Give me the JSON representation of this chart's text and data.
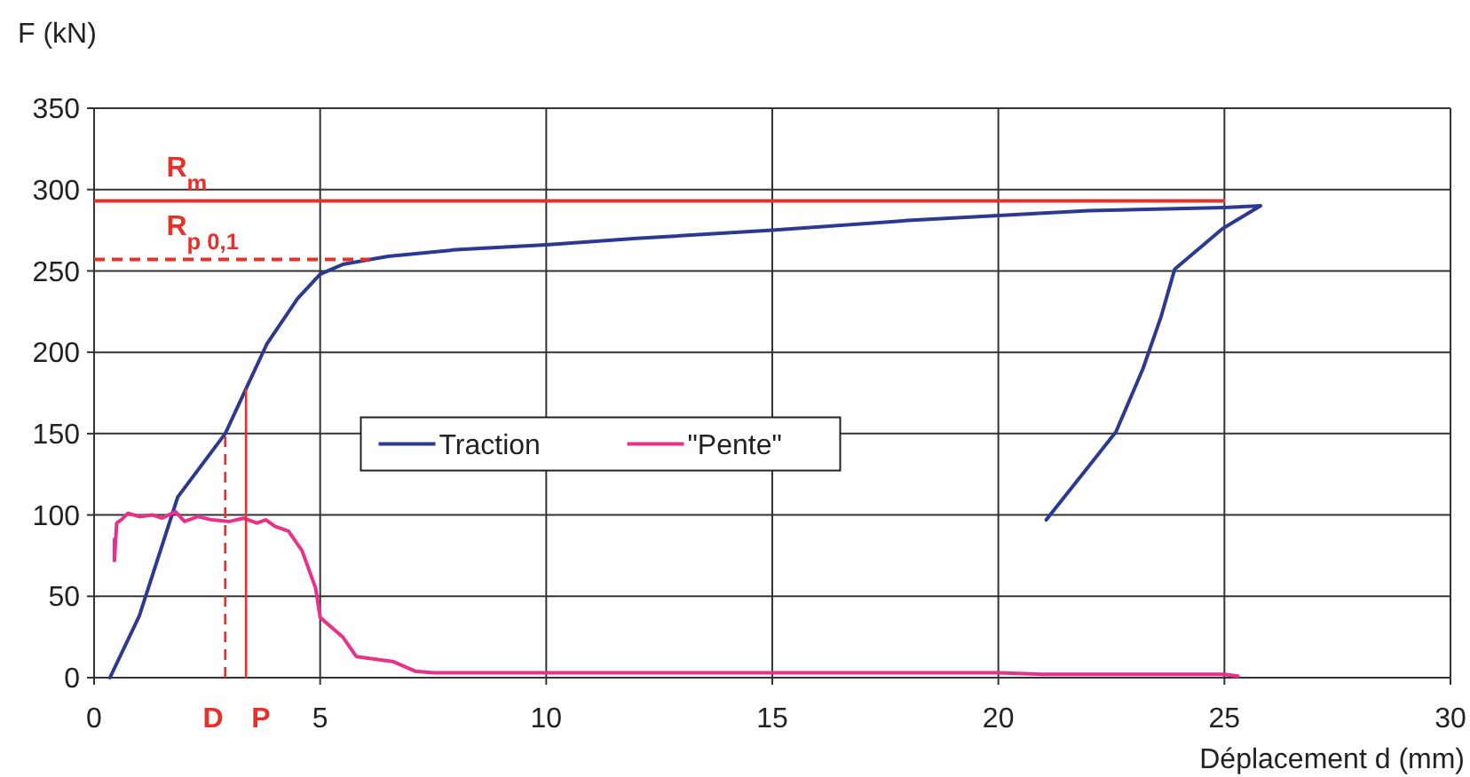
{
  "chart_data": {
    "type": "line",
    "xlabel": "Déplacement d (mm)",
    "ylabel": "F (kN)",
    "xlim": [
      0,
      30
    ],
    "ylim": [
      0,
      350
    ],
    "xticks": [
      0,
      5,
      10,
      15,
      20,
      25,
      30
    ],
    "yticks": [
      0,
      50,
      100,
      150,
      200,
      250,
      300,
      350
    ],
    "grid": true,
    "legend": "center",
    "line_style": "solid",
    "marker": "none",
    "series": [
      {
        "name": "Traction",
        "color": "#2b3990",
        "x": [
          0.35,
          1.0,
          1.85,
          2.9,
          3.4,
          3.82,
          4.5,
          5.0,
          5.5,
          6.5,
          8,
          10,
          12,
          15,
          18,
          20,
          22,
          25,
          25.8,
          24.96,
          23.9,
          23.6,
          23.2,
          22.6,
          21.06
        ],
        "values": [
          0,
          38,
          111,
          150,
          180,
          205,
          233,
          248,
          254,
          259,
          263,
          266,
          270,
          275,
          281,
          284,
          287,
          289,
          290,
          276,
          251,
          222,
          190,
          151,
          97
        ]
      },
      {
        "name": "\"Pente\"",
        "color": "#e8318a",
        "x": [
          0.45,
          0.45,
          0.5,
          0.6,
          0.75,
          1.0,
          1.3,
          1.5,
          1.8,
          2.0,
          2.3,
          2.6,
          3.0,
          3.3,
          3.6,
          3.8,
          4.0,
          4.3,
          4.6,
          4.9,
          5.0,
          5.5,
          5.8,
          6.3,
          6.6,
          7.1,
          7.5,
          10,
          15,
          20,
          21,
          25,
          25.3
        ],
        "values": [
          85,
          72,
          95,
          97,
          101,
          99,
          100,
          98,
          102,
          96,
          99,
          97,
          96,
          98,
          95,
          97,
          93,
          90,
          78,
          55,
          37,
          25,
          13,
          11,
          10,
          4,
          3,
          3,
          3,
          3,
          2,
          2,
          1
        ]
      }
    ],
    "ref_lines": [
      {
        "axis": "y",
        "value": 293,
        "label": "R$_{m}$",
        "color": "#e8302a",
        "line_style": "solid"
      },
      {
        "axis": "y",
        "value": 257,
        "label": "R$_{p 0,1}$",
        "color": "#e8302a",
        "line_style": "dashed"
      },
      {
        "axis": "x",
        "value": 2.9,
        "label": "D",
        "color": "#e8302a",
        "line_style": "dashed"
      },
      {
        "axis": "x",
        "value": 3.36,
        "label": "P",
        "color": "#e8302a",
        "line_style": "solid"
      }
    ]
  }
}
